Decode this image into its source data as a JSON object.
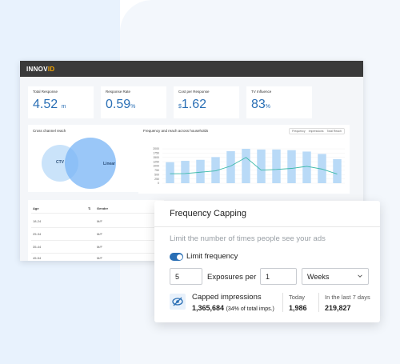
{
  "brand": {
    "logo_main": "INNOV",
    "logo_accent": "ID",
    "accent_color": "#f7a600",
    "primary_color": "#2a6fb5"
  },
  "kpis": [
    {
      "label": "Total Response",
      "value": "4.52",
      "unit": "m",
      "prefix": ""
    },
    {
      "label": "Response Rate",
      "value": "0.59",
      "unit": "%",
      "prefix": ""
    },
    {
      "label": "Cost per Response",
      "value": "1.62",
      "unit": "",
      "prefix": "$"
    },
    {
      "label": "TV Influence",
      "value": "83",
      "unit": "%",
      "prefix": ""
    }
  ],
  "venn": {
    "title": "Cross channel reach",
    "left_label": "CTV",
    "right_label": "Linear"
  },
  "chart_data": {
    "type": "bar",
    "title": "Frequency and reach across households",
    "legend": [
      "Frequency",
      "Impressions",
      "Total Reach"
    ],
    "y_ticks": [
      "2000",
      "1750",
      "1500",
      "1250",
      "1000",
      "750",
      "500",
      "250",
      "0"
    ],
    "categories": [
      "1",
      "2",
      "3",
      "4",
      "5",
      "6",
      "7",
      "8",
      "9",
      "10",
      "11",
      "12"
    ],
    "series": [
      {
        "name": "Impressions",
        "values": [
          1220,
          1300,
          1360,
          1520,
          1860,
          2000,
          1960,
          1960,
          1920,
          1840,
          1700,
          1400
        ]
      },
      {
        "name": "Total Reach",
        "values": [
          550,
          560,
          640,
          720,
          1000,
          1500,
          760,
          800,
          860,
          980,
          820,
          530
        ]
      }
    ],
    "ylim": [
      0,
      2000
    ]
  },
  "table": {
    "headers": [
      "Age",
      "Gender"
    ],
    "rows": [
      [
        "18-24",
        "M/F"
      ],
      [
        "25-34",
        "M/F"
      ],
      [
        "35-44",
        "M/F"
      ],
      [
        "45-54",
        "M/F"
      ]
    ]
  },
  "panel": {
    "title": "Frequency Capping",
    "description": "Limit the number of times people see your ads",
    "toggle_label": "Limit frequency",
    "toggle_on": true,
    "exposures_value": "5",
    "exposures_label": "Exposures per",
    "period_value": "1",
    "period_unit": "Weeks",
    "capped_title": "Capped impressions",
    "capped_value": "1,365,684",
    "capped_sub": "(34% of total imps.)",
    "today_label": "Today",
    "today_value": "1,986",
    "week_label": "In the last 7 days",
    "week_value": "219,827"
  }
}
